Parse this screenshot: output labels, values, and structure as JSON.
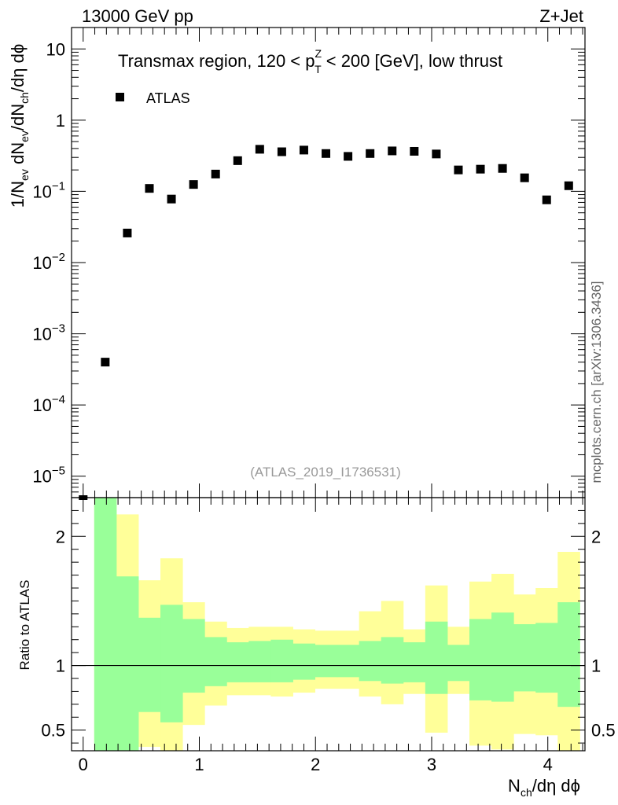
{
  "header": {
    "energy_label": "13000 GeV pp",
    "process_label": "Z+Jet"
  },
  "side_note": "mcplots.cern.ch [arXiv:1306.3436]",
  "analysis_id": "(ATLAS_2019_I1736531)",
  "colors": {
    "band_inner": "#99ff99",
    "band_outer": "#ffff99",
    "marker": "#000000"
  },
  "chart_data": [
    {
      "type": "scatter",
      "title_parts": {
        "pre": "Transmax region, 120 < p",
        "sup": "Z",
        "sub": "T",
        "post": " < 200 [GeV], low thrust"
      },
      "yscale": "log",
      "ylim": [
        5e-06,
        20
      ],
      "xlim": [
        -0.1,
        4.32
      ],
      "ylabel_parts": [
        "1/N",
        "ev",
        " dN",
        "ev",
        "/dN",
        "ch",
        "/dη dϕ"
      ],
      "yticks": [
        {
          "value": 10,
          "label": "10"
        },
        {
          "value": 1,
          "label": "1"
        },
        {
          "value": 0.1,
          "base": "10",
          "exp": "−1"
        },
        {
          "value": 0.01,
          "base": "10",
          "exp": "−2"
        },
        {
          "value": 0.001,
          "base": "10",
          "exp": "−3"
        },
        {
          "value": 0.0001,
          "base": "10",
          "exp": "−4"
        },
        {
          "value": 1e-05,
          "base": "10",
          "exp": "−5"
        }
      ],
      "legend": [
        {
          "name": "ATLAS",
          "marker": "square"
        }
      ],
      "series": [
        {
          "name": "ATLAS",
          "x": [
            0.0,
            0.19,
            0.38,
            0.57,
            0.76,
            0.95,
            1.14,
            1.33,
            1.52,
            1.71,
            1.9,
            2.09,
            2.28,
            2.47,
            2.66,
            2.85,
            3.04,
            3.23,
            3.42,
            3.61,
            3.8,
            3.99,
            4.18
          ],
          "y": [
            4.5e-06,
            0.0004,
            0.026,
            0.11,
            0.078,
            0.125,
            0.175,
            0.27,
            0.39,
            0.36,
            0.38,
            0.34,
            0.31,
            0.34,
            0.37,
            0.365,
            0.335,
            0.2,
            0.205,
            0.21,
            0.155,
            0.076,
            0.12
          ]
        }
      ]
    },
    {
      "type": "area",
      "ylabel": "Ratio to ATLAS",
      "xlabel_parts": [
        "N",
        "ch",
        "/dη dϕ"
      ],
      "ylim": [
        0.34,
        2.3
      ],
      "xlim": [
        -0.1,
        4.32
      ],
      "xticks": [
        0,
        1,
        2,
        3,
        4
      ],
      "yticks": [
        {
          "value": 2,
          "label": "2"
        },
        {
          "value": 1,
          "label": "1"
        },
        {
          "value": 0.5,
          "label": "0.5"
        }
      ],
      "reference_line": 1,
      "bins": {
        "edges": [
          0.095,
          0.285,
          0.475,
          0.665,
          0.855,
          1.045,
          1.235,
          1.425,
          1.615,
          1.805,
          1.995,
          2.185,
          2.375,
          2.565,
          2.755,
          2.945,
          3.135,
          3.325,
          3.515,
          3.705,
          3.895,
          4.085,
          4.275
        ],
        "inner_up": [
          2.4,
          1.69,
          1.37,
          1.47,
          1.36,
          1.22,
          1.18,
          1.19,
          1.2,
          1.17,
          1.16,
          1.16,
          1.19,
          1.22,
          1.18,
          1.34,
          1.16,
          1.36,
          1.41,
          1.32,
          1.33,
          1.49,
          1.56
        ],
        "inner_dn": [
          0.3,
          0.3,
          0.64,
          0.56,
          0.79,
          0.84,
          0.87,
          0.87,
          0.87,
          0.89,
          0.91,
          0.91,
          0.88,
          0.86,
          0.87,
          0.78,
          0.88,
          0.73,
          0.72,
          0.8,
          0.79,
          0.68,
          0.53
        ],
        "outer_up": [
          2.4,
          2.17,
          1.66,
          1.83,
          1.49,
          1.34,
          1.29,
          1.3,
          1.3,
          1.28,
          1.27,
          1.27,
          1.42,
          1.5,
          1.28,
          1.62,
          1.3,
          1.65,
          1.71,
          1.55,
          1.6,
          1.88,
          1.98
        ],
        "outer_dn": [
          0.3,
          0.3,
          0.37,
          0.3,
          0.54,
          0.69,
          0.77,
          0.77,
          0.76,
          0.79,
          0.82,
          0.82,
          0.76,
          0.7,
          0.78,
          0.48,
          0.78,
          0.38,
          0.35,
          0.47,
          0.46,
          0.31,
          0.22
        ]
      }
    }
  ]
}
